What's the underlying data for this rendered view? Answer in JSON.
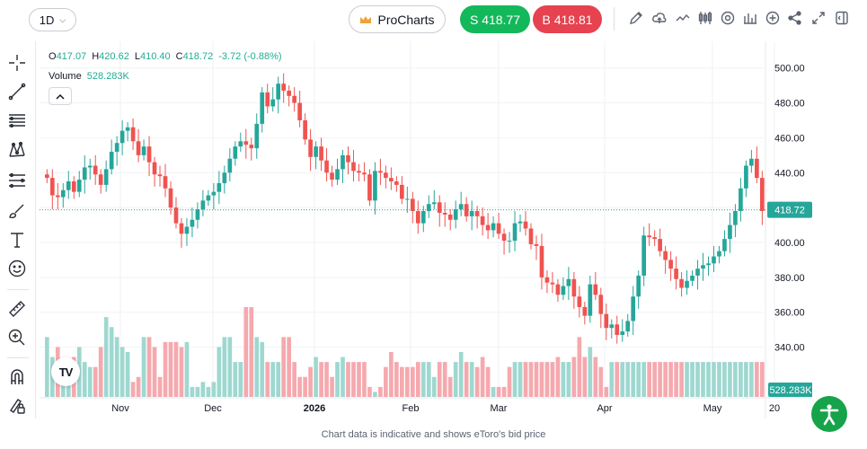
{
  "toolbar": {
    "interval": "1D",
    "pro_label": "ProCharts",
    "sell_label": "S 418.77",
    "buy_label": "B 418.81",
    "icons": [
      "draw-icon",
      "cloud-icon",
      "line-type-icon",
      "candles-icon",
      "settings-icon",
      "indicators-icon",
      "add-icon",
      "share-icon",
      "fullscreen-icon",
      "panel-icon"
    ]
  },
  "legend": {
    "o_key": "O",
    "o_val": "417.07",
    "h_key": "H",
    "h_val": "420.62",
    "l_key": "L",
    "l_val": "410.40",
    "c_key": "C",
    "c_val": "418.72",
    "change": "-3.72 (-0.88%)",
    "volume_label": "Volume",
    "volume_val": "528.283K"
  },
  "colors": {
    "up": "#26a69a",
    "down": "#ef5350",
    "up_vol": "#9ed8d0",
    "down_vol": "#f5a9ae",
    "accent_sell": "#13b85a",
    "accent_buy": "#e6424f"
  },
  "footer_text": "Chart data is indicative and shows eToro's bid price",
  "chart_data": {
    "type": "candlestick",
    "ylim": [
      330,
      505
    ],
    "yticks": [
      "500.00",
      "480.00",
      "460.00",
      "440.00",
      "420.00",
      "400.00",
      "380.00",
      "360.00",
      "340.00"
    ],
    "ytick_values": [
      500,
      480,
      460,
      440,
      420,
      400,
      380,
      360,
      340
    ],
    "xticks": [
      "Nov",
      "Dec",
      "2026",
      "Feb",
      "Mar",
      "Apr",
      "May",
      "20"
    ],
    "last_price": "418.72",
    "last_volume": "528.283K",
    "closes": [
      437,
      427,
      426,
      430,
      435,
      429,
      436,
      443,
      444,
      439,
      433,
      442,
      452,
      457,
      464,
      466,
      458,
      450,
      455,
      446,
      439,
      438,
      431,
      420,
      411,
      405,
      409,
      413,
      419,
      424,
      427,
      429,
      434,
      440,
      448,
      455,
      458,
      456,
      454,
      468,
      486,
      478,
      482,
      491,
      487,
      484,
      480,
      470,
      459,
      449,
      455,
      447,
      440,
      436,
      442,
      450,
      446,
      441,
      440,
      439,
      424,
      441,
      440,
      437,
      435,
      433,
      425,
      425,
      418,
      411,
      418,
      422,
      423,
      417,
      416,
      413,
      419,
      422,
      415,
      418,
      415,
      410,
      407,
      411,
      405,
      401,
      401,
      411,
      412,
      408,
      399,
      398,
      380,
      377,
      376,
      370,
      375,
      379,
      369,
      363,
      358,
      376,
      370,
      359,
      351,
      353,
      347,
      349,
      355,
      369,
      381,
      404,
      403,
      402,
      395,
      390,
      385,
      379,
      374,
      378,
      381,
      385,
      387,
      388,
      392,
      395,
      402,
      410,
      418,
      431,
      444,
      448,
      437,
      418
    ]
  },
  "volume_data": {
    "values": [
      370,
      350,
      360,
      340,
      330,
      350,
      360,
      345,
      340,
      340,
      360,
      390,
      380,
      370,
      360,
      355,
      325,
      330,
      370,
      370,
      360,
      330,
      365,
      365,
      365,
      360,
      365,
      320,
      320,
      325,
      320,
      325,
      360,
      370,
      370,
      345,
      345,
      400,
      400,
      370,
      365,
      345,
      345,
      345,
      370,
      370,
      345,
      330,
      330,
      340,
      350,
      345,
      345,
      330,
      345,
      350,
      345,
      345,
      345,
      345,
      320,
      315,
      320,
      340,
      355,
      345,
      340,
      340,
      340,
      345,
      345,
      345,
      330,
      345,
      345,
      330,
      345,
      355,
      345,
      345,
      340,
      350,
      340,
      320,
      320,
      320,
      340,
      345,
      345,
      345,
      345,
      345,
      345,
      345,
      345,
      350,
      345,
      345,
      350,
      370,
      350,
      360,
      350,
      340,
      320,
      345,
      345,
      345,
      345,
      345,
      345,
      345,
      345,
      345,
      345,
      345,
      345,
      345,
      345,
      345,
      345,
      345,
      345,
      345,
      345,
      345,
      345,
      345,
      345,
      345,
      345,
      345,
      345,
      345
    ],
    "up": [
      true,
      true,
      false,
      true,
      true,
      false,
      true,
      true,
      true,
      false,
      false,
      true,
      true,
      true,
      true,
      true,
      false,
      false,
      true,
      false,
      false,
      false,
      false,
      false,
      false,
      false,
      true,
      true,
      true,
      true,
      true,
      true,
      true,
      true,
      true,
      true,
      true,
      false,
      false,
      true,
      true,
      false,
      true,
      true,
      false,
      false,
      false,
      false,
      false,
      false,
      true,
      false,
      false,
      false,
      true,
      true,
      false,
      false,
      false,
      false,
      false,
      true,
      false,
      false,
      false,
      false,
      false,
      false,
      false,
      false,
      true,
      true,
      true,
      false,
      false,
      false,
      true,
      true,
      false,
      true,
      false,
      false,
      false,
      true,
      false,
      false,
      false,
      true,
      true,
      false,
      false,
      false,
      false,
      false,
      false,
      false,
      true,
      true,
      false,
      false,
      false,
      true,
      false,
      false,
      false,
      true,
      false,
      true,
      true,
      true,
      true,
      true,
      false,
      false,
      false,
      false,
      false,
      false,
      false,
      true,
      true,
      true,
      true,
      true,
      true,
      true,
      true,
      true,
      true,
      true,
      true,
      true,
      false,
      false
    ]
  }
}
